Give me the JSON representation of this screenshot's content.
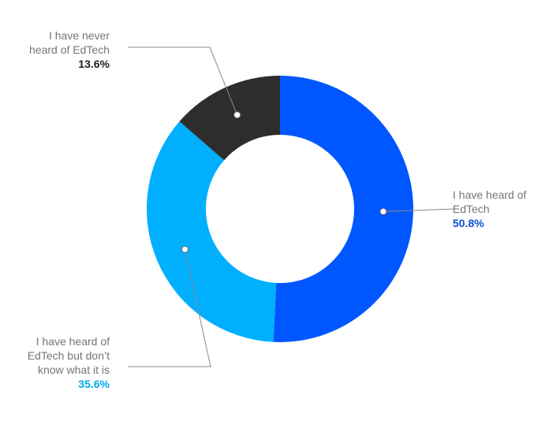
{
  "chart_data": {
    "type": "pie",
    "donut": true,
    "start_angle_deg": 0,
    "direction": "clockwise",
    "slices": [
      {
        "label_lines": [
          "I have heard of",
          "EdTech"
        ],
        "value": 50.8,
        "display": "50.8%",
        "color": "#0057ff",
        "value_color": "#0a4fd6"
      },
      {
        "label_lines": [
          "I have heard of",
          "EdTech but don’t",
          "know what it is"
        ],
        "value": 35.6,
        "display": "35.6%",
        "color": "#00b0ff",
        "value_color": "#00a7ef"
      },
      {
        "label_lines": [
          "I have never",
          "heard of EdTech"
        ],
        "value": 13.6,
        "display": "13.6%",
        "color": "#2d2d2d",
        "value_color": "#1f1f1f"
      }
    ],
    "legend": "none",
    "grid": false
  }
}
